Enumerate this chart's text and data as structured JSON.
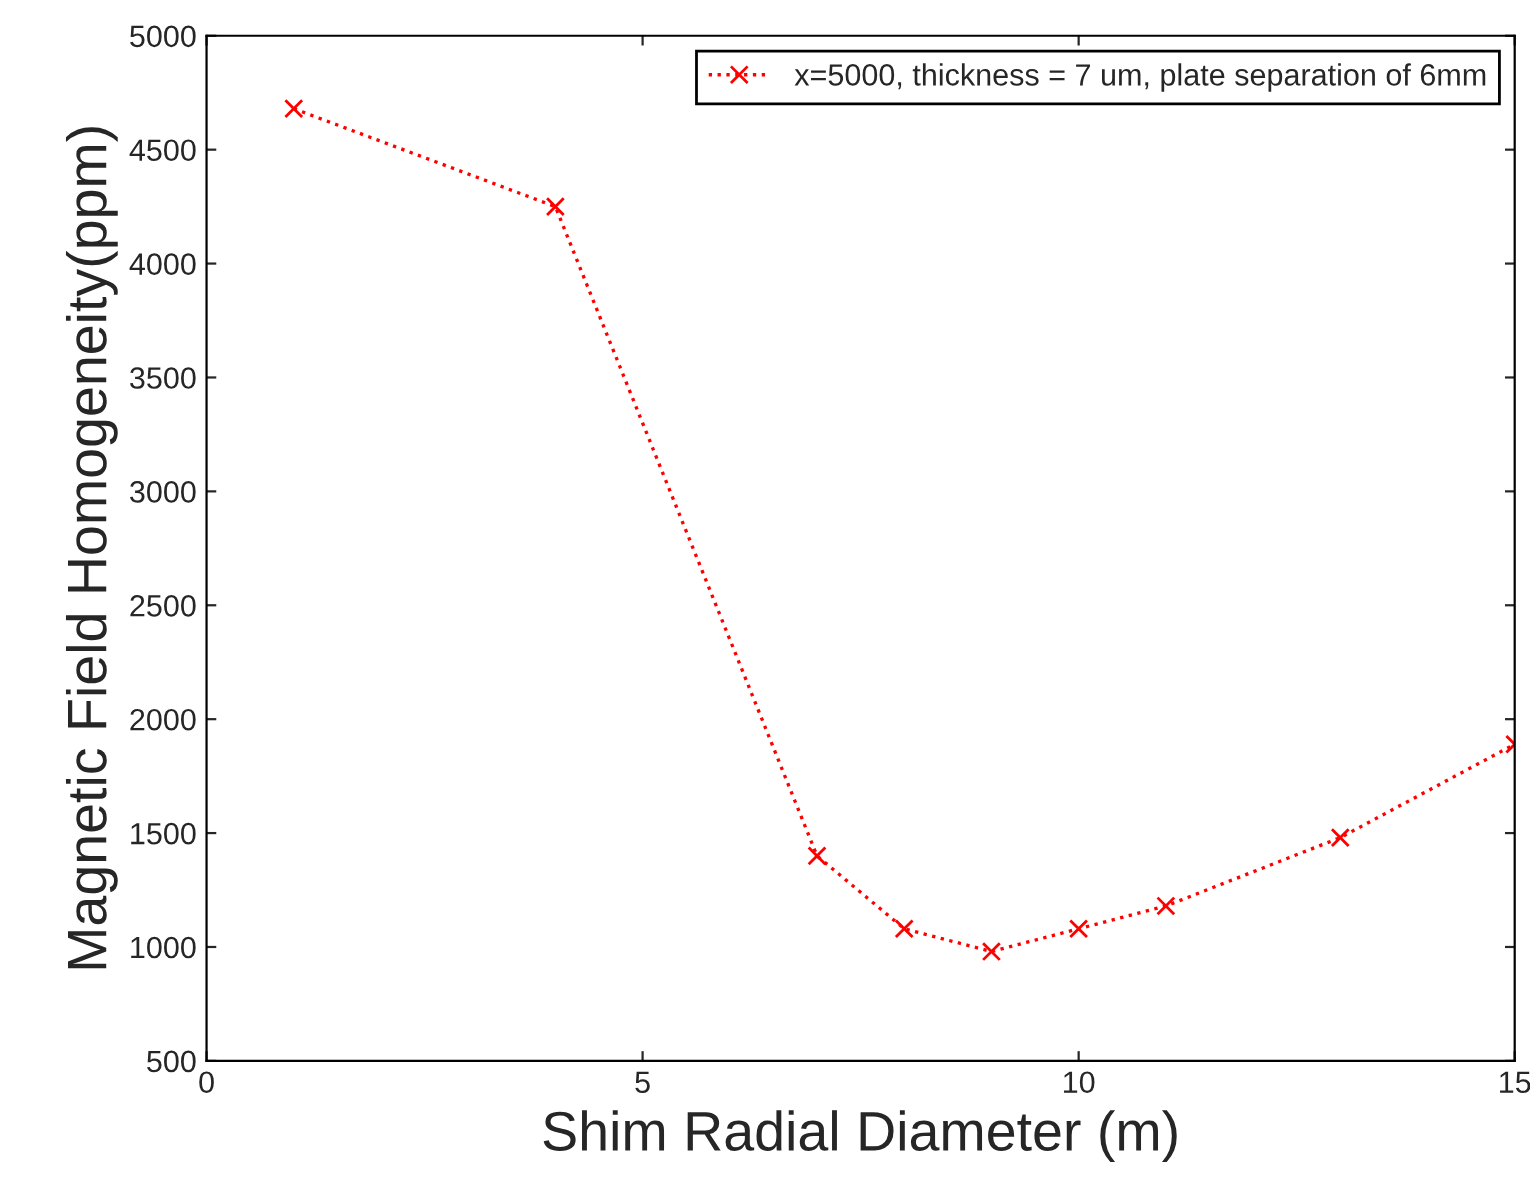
{
  "chart_data": {
    "type": "line",
    "xlabel": "Shim Radial Diameter (m)",
    "ylabel": "Magnetic Field Homogeneity(ppm)",
    "x": [
      1,
      4,
      7,
      8,
      9,
      10,
      11,
      13,
      15
    ],
    "series": [
      {
        "name": "x=5000, thickness = 7 um, plate separation of 6mm",
        "color": "#ff0000",
        "values": [
          4680,
          4250,
          1400,
          1080,
          980,
          1080,
          1180,
          1480,
          1890
        ]
      }
    ],
    "xlim": [
      0,
      15
    ],
    "xticks": [
      0,
      5,
      10,
      15
    ],
    "ylim": [
      500,
      5000
    ],
    "yticks": [
      500,
      1000,
      1500,
      2000,
      2500,
      3000,
      3500,
      4000,
      4500,
      5000
    ],
    "grid": false,
    "legend": "top right",
    "marker": "cross",
    "line_style": "dotted"
  }
}
